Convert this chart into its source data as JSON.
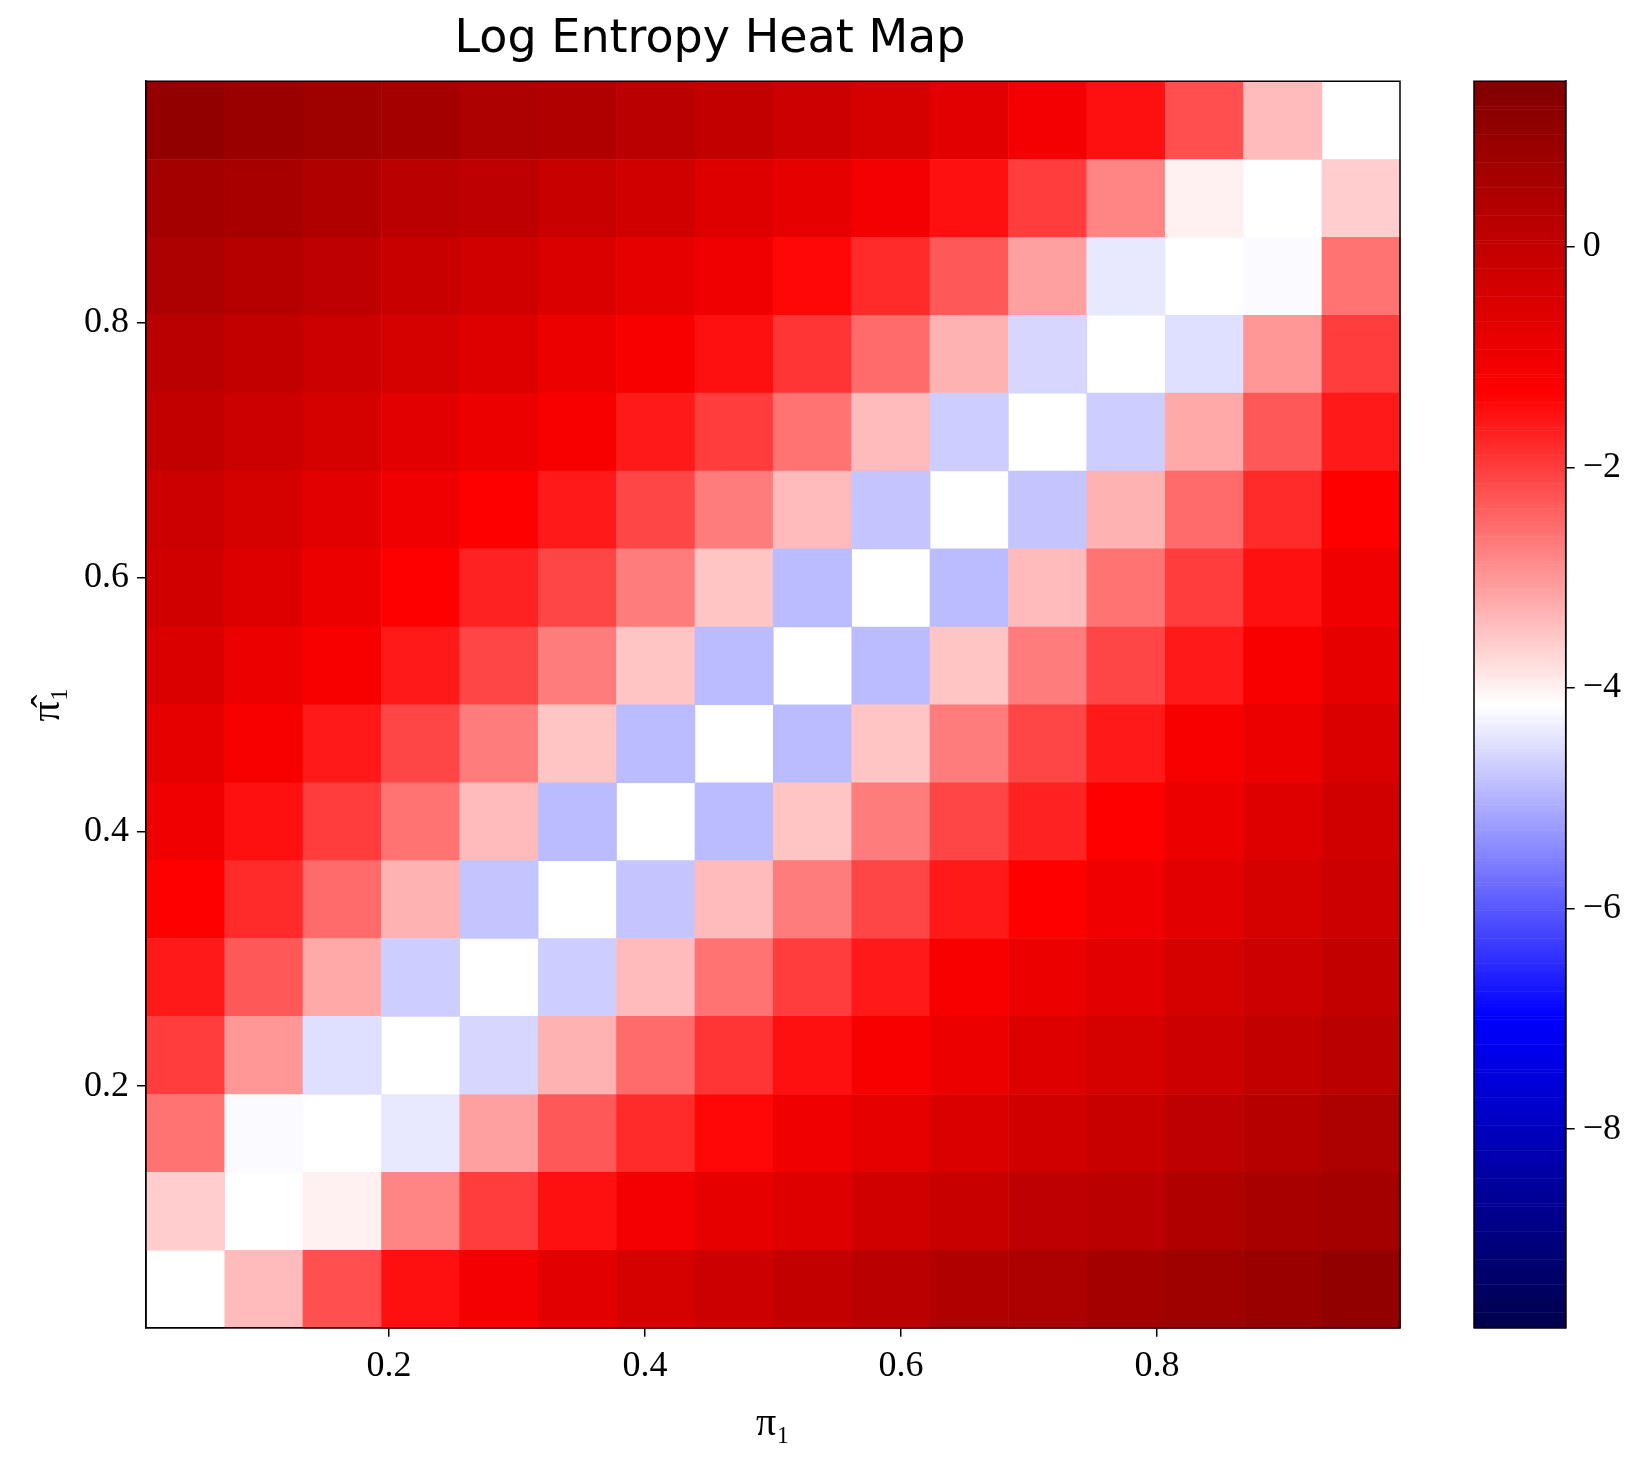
{
  "chart_data": {
    "type": "heatmap",
    "title": "Log Entropy Heat Map",
    "xlabel": "π₁",
    "ylabel": "π̂₁",
    "x": [
      0.0406,
      0.1019,
      0.1631,
      0.2244,
      0.2856,
      0.3469,
      0.4081,
      0.4694,
      0.5306,
      0.5919,
      0.6531,
      0.7144,
      0.7756,
      0.8369,
      0.8981,
      0.9594
    ],
    "y": [
      0.9594,
      0.8981,
      0.8369,
      0.7756,
      0.7144,
      0.6531,
      0.5919,
      0.5306,
      0.4694,
      0.4081,
      0.3469,
      0.2856,
      0.2244,
      0.1631,
      0.1019,
      0.0406
    ],
    "xlim": [
      0.01,
      0.99
    ],
    "ylim": [
      0.01,
      0.99
    ],
    "xticks": [
      0.2,
      0.4,
      0.6,
      0.8
    ],
    "yticks": [
      0.2,
      0.4,
      0.6,
      0.8
    ],
    "cells": [
      [
        1.1,
        0.9,
        0.8,
        0.7,
        0.5,
        0.4,
        0.2,
        0.0,
        -0.2,
        -0.4,
        -0.7,
        -1.1,
        -1.5,
        -2.2,
        -3.4,
        null
      ],
      [
        0.7,
        0.6,
        0.4,
        0.2,
        0.1,
        -0.1,
        -0.3,
        -0.6,
        -0.8,
        -1.1,
        -1.5,
        -2.0,
        -2.8,
        -4.0,
        null,
        -3.6
      ],
      [
        0.5,
        0.3,
        0.1,
        -0.1,
        -0.3,
        -0.5,
        -0.8,
        -1.0,
        -1.4,
        -1.8,
        -2.3,
        -3.1,
        -4.4,
        null,
        -4.2,
        -2.6
      ],
      [
        0.2,
        0.0,
        -0.2,
        -0.4,
        -0.6,
        -0.9,
        -1.2,
        -1.5,
        -1.9,
        -2.5,
        -3.3,
        -4.6,
        null,
        -4.5,
        -3.0,
        -2.0
      ],
      [
        0.0,
        -0.2,
        -0.4,
        -0.7,
        -0.9,
        -1.2,
        -1.6,
        -2.0,
        -2.6,
        -3.4,
        -4.7,
        null,
        -4.7,
        -3.2,
        -2.3,
        -1.6
      ],
      [
        -0.2,
        -0.4,
        -0.7,
        -1.0,
        -1.3,
        -1.6,
        -2.1,
        -2.7,
        -3.4,
        -4.8,
        null,
        -4.8,
        -3.3,
        -2.5,
        -1.8,
        -1.3
      ],
      [
        -0.3,
        -0.6,
        -0.9,
        -1.3,
        -1.7,
        -2.1,
        -2.7,
        -3.5,
        -4.9,
        null,
        -4.9,
        -3.4,
        -2.6,
        -2.0,
        -1.5,
        -1.0
      ],
      [
        -0.5,
        -0.9,
        -1.2,
        -1.6,
        -2.1,
        -2.7,
        -3.5,
        -4.9,
        null,
        -4.9,
        -3.5,
        -2.7,
        -2.1,
        -1.6,
        -1.2,
        -0.8
      ],
      [
        -0.8,
        -1.2,
        -1.6,
        -2.1,
        -2.7,
        -3.5,
        -4.9,
        null,
        -4.9,
        -3.5,
        -2.7,
        -2.1,
        -1.6,
        -1.2,
        -0.9,
        -0.5
      ],
      [
        -1.0,
        -1.5,
        -2.0,
        -2.6,
        -3.4,
        -4.9,
        null,
        -4.9,
        -3.5,
        -2.7,
        -2.1,
        -1.7,
        -1.3,
        -0.9,
        -0.6,
        -0.3
      ],
      [
        -1.3,
        -1.8,
        -2.5,
        -3.3,
        -4.8,
        null,
        -4.8,
        -3.4,
        -2.7,
        -2.1,
        -1.6,
        -1.3,
        -1.0,
        -0.7,
        -0.4,
        -0.2
      ],
      [
        -1.6,
        -2.3,
        -3.2,
        -4.7,
        null,
        -4.7,
        -3.4,
        -2.6,
        -2.0,
        -1.6,
        -1.2,
        -0.9,
        -0.7,
        -0.4,
        -0.2,
        0.0
      ],
      [
        -2.0,
        -3.0,
        -4.5,
        null,
        -4.6,
        -3.3,
        -2.5,
        -1.9,
        -1.5,
        -1.2,
        -0.9,
        -0.6,
        -0.4,
        -0.2,
        0.0,
        0.2
      ],
      [
        -2.6,
        -4.2,
        null,
        -4.4,
        -3.1,
        -2.3,
        -1.8,
        -1.4,
        -1.0,
        -0.8,
        -0.5,
        -0.3,
        -0.1,
        0.1,
        0.3,
        0.5
      ],
      [
        -3.6,
        null,
        -4.0,
        -2.8,
        -2.0,
        -1.5,
        -1.1,
        -0.8,
        -0.6,
        -0.3,
        -0.1,
        0.1,
        0.2,
        0.4,
        0.6,
        0.7
      ],
      [
        null,
        -3.4,
        -2.2,
        -1.5,
        -1.1,
        -0.7,
        -0.4,
        -0.2,
        0.0,
        0.2,
        0.4,
        0.5,
        0.7,
        0.8,
        0.9,
        1.1
      ]
    ],
    "clim": [
      -9.8,
      1.5
    ],
    "cticks": [
      0,
      -2,
      -4,
      -6,
      -8
    ]
  }
}
